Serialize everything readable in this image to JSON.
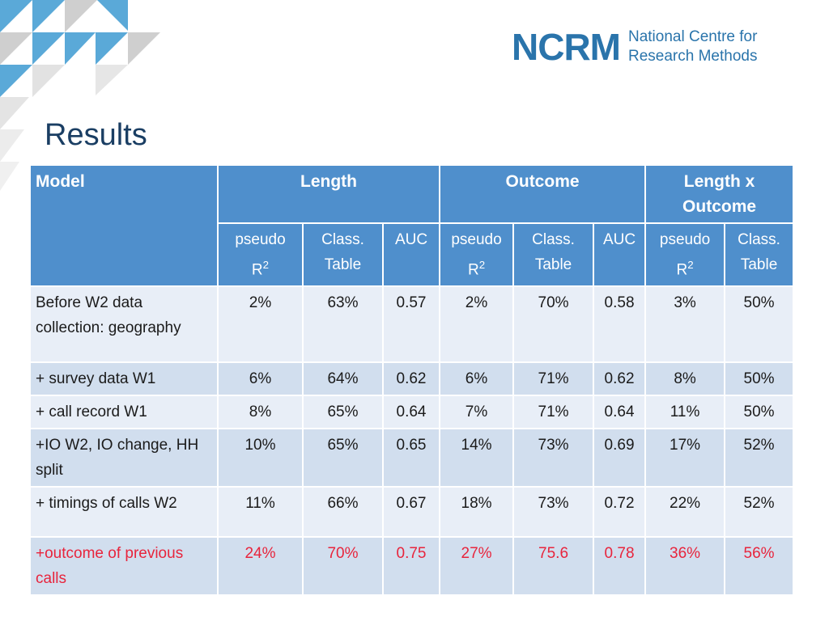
{
  "logo": {
    "mark": "NCRM",
    "name_line1": "National Centre for",
    "name_line2": "Research Methods"
  },
  "slide": {
    "title": "Results"
  },
  "table": {
    "header": {
      "model": "Model",
      "groups": [
        "Length",
        "Outcome",
        "Length x Outcome"
      ],
      "subheaders": [
        {
          "line1": "pseudo",
          "line2": "R2"
        },
        {
          "line1": "Class.",
          "line2": "Table"
        },
        {
          "line1": "AUC",
          "line2": ""
        },
        {
          "line1": "pseudo",
          "line2": "R2"
        },
        {
          "line1": "Class.",
          "line2": "Table"
        },
        {
          "line1": "AUC",
          "line2": ""
        },
        {
          "line1": "pseudo",
          "line2": "R2"
        },
        {
          "line1": "Class.",
          "line2": "Table"
        }
      ]
    },
    "rows": [
      {
        "model": "Before  W2 data collection: geography",
        "values": [
          "2%",
          "63%",
          "0.57",
          "2%",
          "70%",
          "0.58",
          "3%",
          "50%"
        ]
      },
      {
        "model": "+ survey data W1",
        "values": [
          "6%",
          "64%",
          "0.62",
          "6%",
          "71%",
          "0.62",
          "8%",
          "50%"
        ]
      },
      {
        "model": "+ call record  W1",
        "values": [
          "8%",
          "65%",
          "0.64",
          "7%",
          "71%",
          "0.64",
          "11%",
          "50%"
        ]
      },
      {
        "model": "+IO W2, IO change, HH split",
        "values": [
          "10%",
          "65%",
          "0.65",
          "14%",
          "73%",
          "0.69",
          "17%",
          "52%"
        ]
      },
      {
        "model": "+ timings of calls W2",
        "values": [
          "11%",
          "66%",
          "0.67",
          "18%",
          "73%",
          "0.72",
          "22%",
          "52%"
        ]
      },
      {
        "model": "+outcome of previous calls",
        "values": [
          "24%",
          "70%",
          "0.75",
          "27%",
          "75.6",
          "0.78",
          "36%",
          "56%"
        ]
      }
    ],
    "highlight_color": "#e8243c"
  }
}
